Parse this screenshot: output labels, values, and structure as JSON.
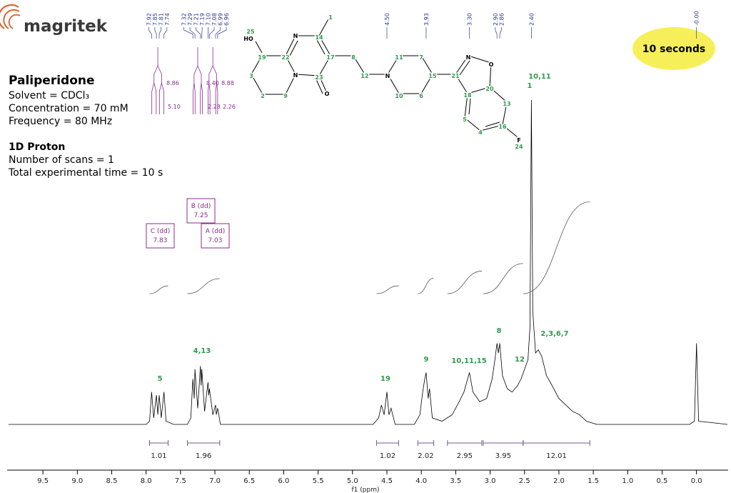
{
  "logo": "magritek",
  "badge": "10 seconds",
  "info": {
    "title": "Paliperidone",
    "lines": [
      "Solvent = CDCl₃",
      "Concentration = 70 mM",
      "Frequency = 80 MHz"
    ],
    "heading": "1D Proton",
    "details": [
      "Number of scans = 1",
      "Total experimental time = 10 s"
    ]
  },
  "molecule": {
    "atoms": [
      "25",
      "HO",
      "19",
      "22",
      "N",
      "14",
      "1",
      "17",
      "23",
      "N",
      "O",
      "3",
      "2",
      "9",
      "8",
      "12",
      "N",
      "11",
      "7",
      "10",
      "6",
      "15",
      "21",
      "N",
      "O",
      "20",
      "18",
      "13",
      "5",
      "4",
      "16",
      "F",
      "24"
    ]
  },
  "chart_data": {
    "type": "line",
    "xlabel": "f1 (ppm)",
    "xlim": [
      10.02,
      -0.46
    ],
    "ylim": [
      0,
      100
    ],
    "xticks": [
      9.5,
      {
        "value": 9,
        "label": "9.0"
      },
      8.5,
      {
        "value": 8,
        "label": "8.0"
      },
      7.5,
      {
        "value": 7,
        "label": "7.0"
      },
      6.5,
      {
        "value": 6,
        "label": "6.0"
      },
      5.5,
      {
        "value": 5,
        "label": "5.0"
      },
      4.5,
      {
        "value": 4,
        "label": "4.0"
      },
      3.5,
      {
        "value": 3,
        "label": "3.0"
      },
      2.5,
      {
        "value": 2,
        "label": "2.0"
      },
      1.5,
      {
        "value": 1,
        "label": "1.0"
      },
      0.5,
      {
        "value": 0,
        "label": "0.0"
      }
    ],
    "x": [
      10.0,
      8.0,
      7.95,
      7.92,
      7.89,
      7.85,
      7.83,
      7.81,
      7.78,
      7.74,
      7.71,
      7.6,
      7.4,
      7.35,
      7.32,
      7.3,
      7.29,
      7.25,
      7.21,
      7.2,
      7.19,
      7.15,
      7.1,
      7.09,
      7.08,
      7.03,
      6.99,
      6.98,
      6.96,
      6.92,
      6.0,
      4.7,
      4.62,
      4.58,
      4.54,
      4.5,
      4.47,
      4.44,
      4.38,
      4.1,
      4.02,
      3.98,
      3.95,
      3.93,
      3.9,
      3.88,
      3.84,
      3.7,
      3.55,
      3.45,
      3.38,
      3.3,
      3.25,
      3.15,
      3.05,
      2.97,
      2.93,
      2.9,
      2.88,
      2.86,
      2.82,
      2.75,
      2.68,
      2.6,
      2.55,
      2.45,
      2.42,
      2.4,
      2.38,
      2.34,
      2.3,
      2.25,
      2.18,
      2.1,
      2.0,
      1.9,
      1.8,
      1.7,
      1.6,
      1.45,
      0.1,
      0.03,
      0.0,
      -0.03,
      -0.45
    ],
    "series": [
      {
        "color": "#000000",
        "values": [
          0,
          0,
          1,
          10,
          2,
          9,
          3,
          9,
          2,
          10,
          1,
          0,
          0,
          2,
          14,
          8,
          17,
          5,
          18,
          12,
          17,
          4,
          13,
          9,
          11,
          3,
          6,
          3,
          5,
          0,
          0,
          0,
          2,
          6,
          3,
          10,
          3,
          5,
          0,
          0,
          3,
          10,
          14,
          16,
          8,
          11,
          2,
          1,
          3,
          7,
          10,
          16,
          10,
          7,
          8,
          14,
          20,
          25,
          22,
          25,
          15,
          11,
          10,
          12,
          14,
          20,
          30,
          100,
          35,
          22,
          23,
          21,
          15,
          12,
          8,
          6,
          4,
          3,
          1,
          0,
          0,
          1,
          25,
          1,
          0
        ]
      }
    ],
    "peak_labels": [
      7.92,
      7.85,
      7.81,
      7.74,
      7.32,
      7.29,
      7.21,
      7.19,
      {
        "value": 7.1,
        "label": "7.10"
      },
      7.08,
      6.99,
      6.96,
      {
        "value": 4.5,
        "label": "4.50"
      },
      3.93,
      {
        "value": 3.3,
        "label": "3.30"
      },
      {
        "value": 2.9,
        "label": "2.90"
      },
      2.86,
      {
        "value": 2.4,
        "label": "2.40"
      },
      {
        "value": 0,
        "label": "-0.00"
      }
    ],
    "integrals": [
      {
        "from": 7.95,
        "to": 7.68,
        "value": 1.01
      },
      {
        "from": 7.4,
        "to": 6.93,
        "value": 1.96
      },
      {
        "from": 4.65,
        "to": 4.33,
        "value": 1.02
      },
      {
        "from": 4.05,
        "to": 3.82,
        "value": 2.02
      },
      {
        "from": 3.62,
        "to": 3.12,
        "value": 2.95
      },
      {
        "from": 3.1,
        "to": 2.52,
        "value": 3.95
      },
      {
        "from": 2.52,
        "to": 1.55,
        "value": 12.01
      }
    ],
    "multiplets": [
      {
        "name": "C (dd)",
        "shift": 7.83,
        "j": [
          8.86,
          {
            "value": 5.1,
            "label": "5.10"
          }
        ]
      },
      {
        "name": "B (dd)",
        "shift": 7.25,
        "j": [
          {
            "value": 8.4,
            "label": "8.40"
          },
          2.28
        ]
      },
      {
        "name": "A (dd)",
        "shift": 7.03,
        "j": [
          8.88,
          2.26
        ]
      }
    ],
    "frequency_mhz": 80,
    "assignments": [
      "5",
      "4,13",
      "19",
      "9",
      "10,11,15",
      "8",
      "12",
      "2,3,6,7",
      "10,11",
      "1"
    ]
  }
}
